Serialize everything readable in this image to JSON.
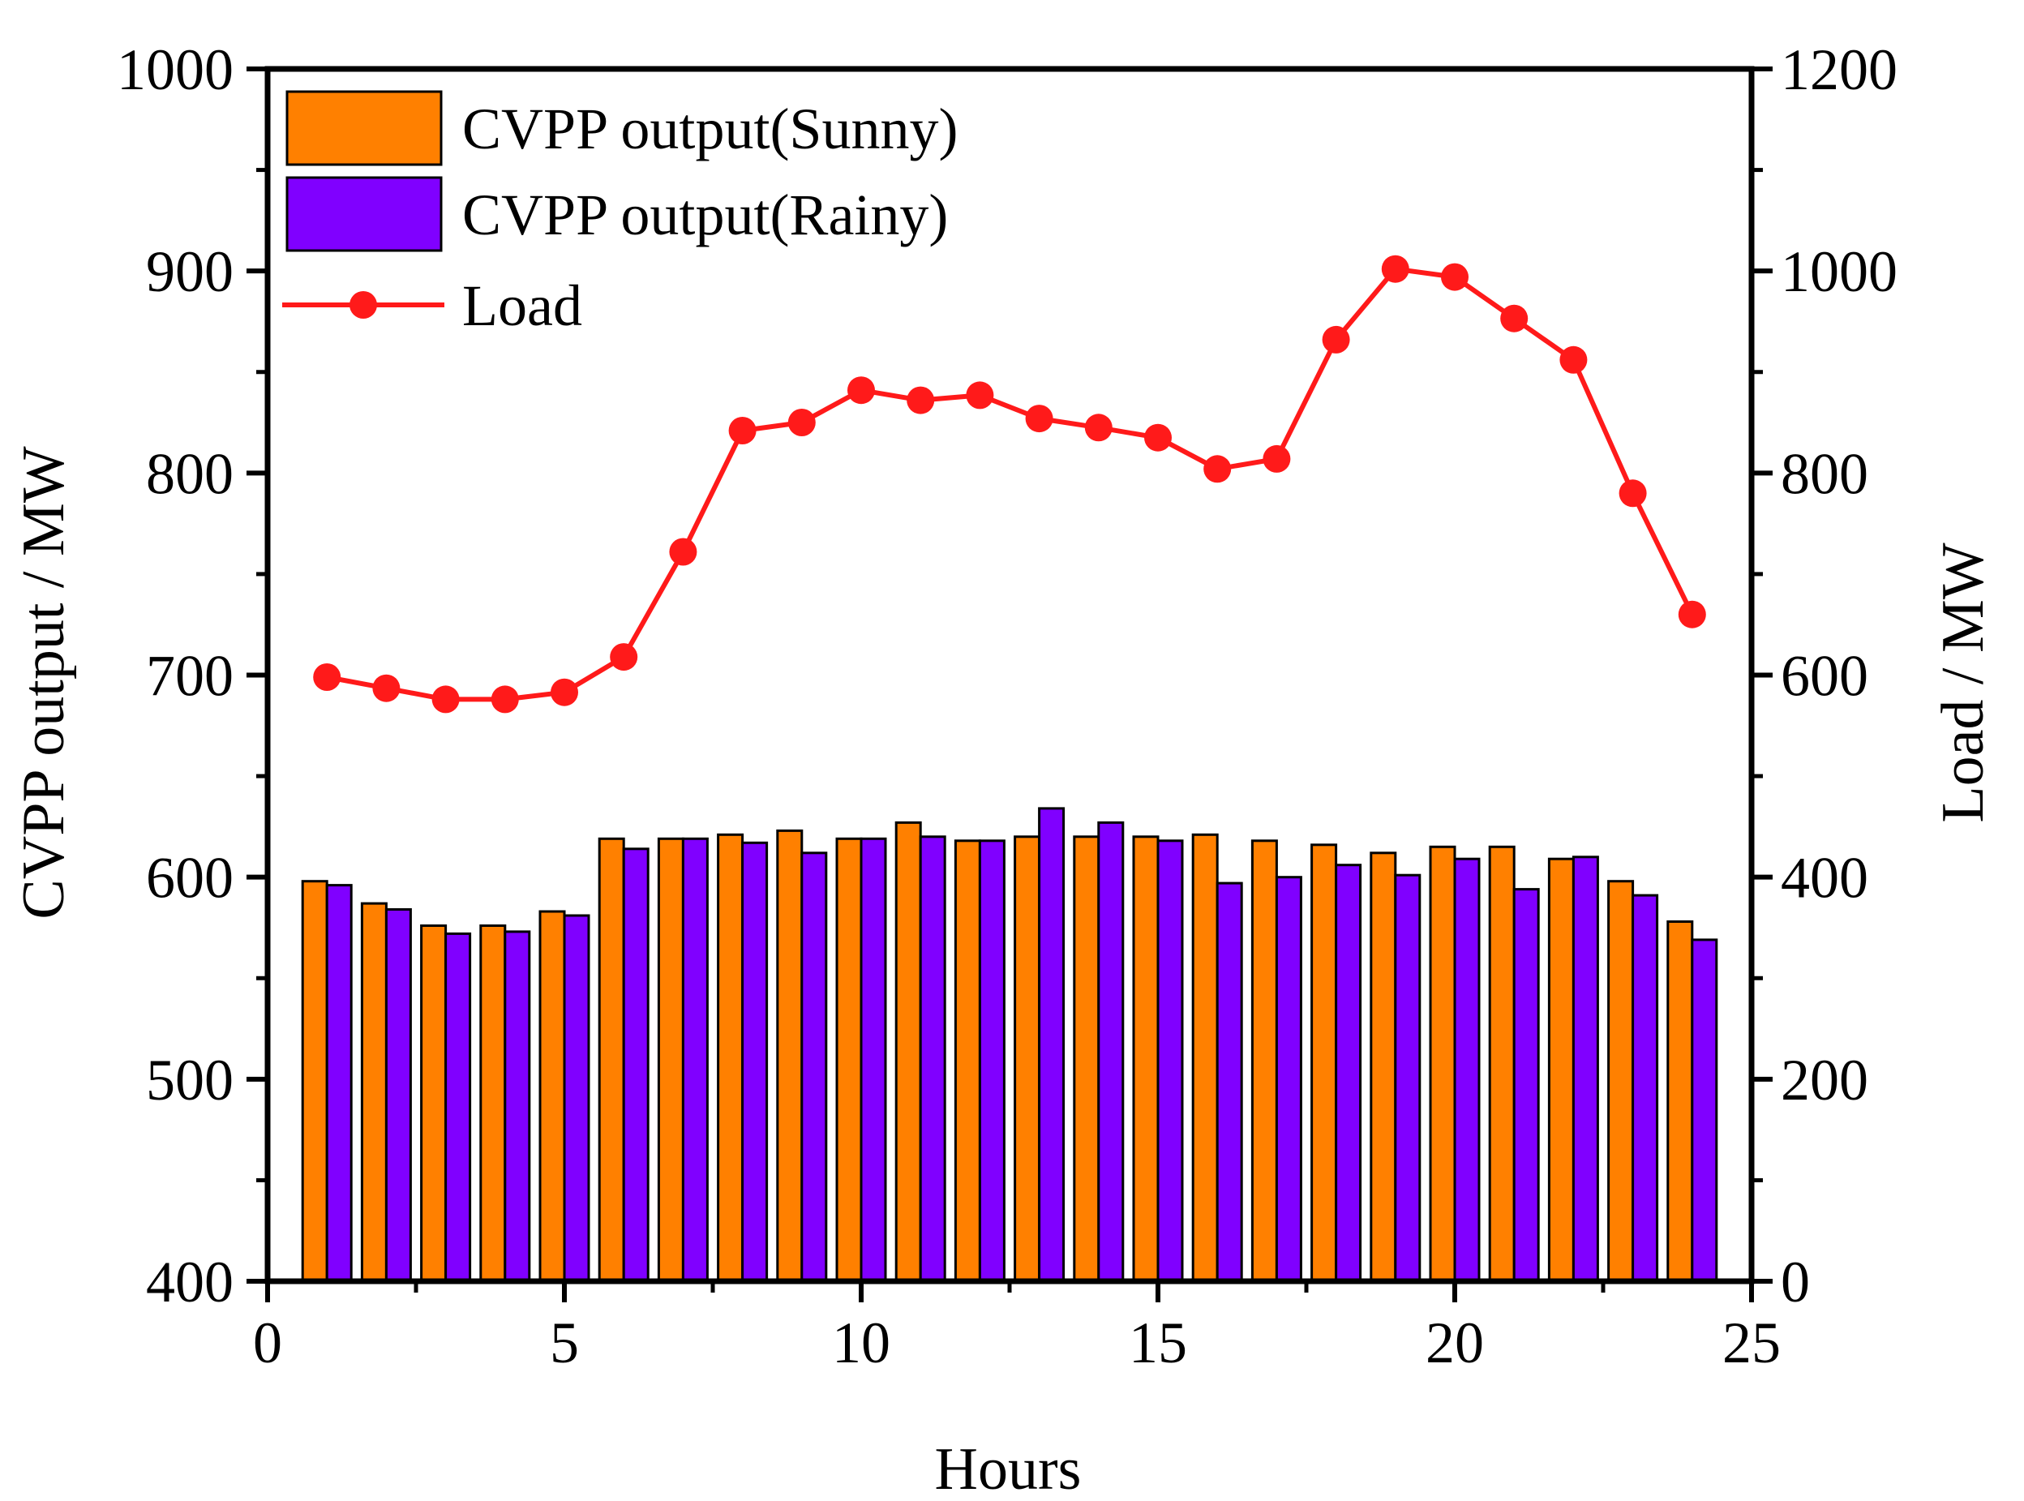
{
  "chart_data": {
    "type": "bar",
    "xlabel": "Hours",
    "ylabel_left": "CVPP output / MW",
    "ylabel_right": "Load / MW",
    "xlim": [
      0,
      25
    ],
    "ylim_left": [
      400,
      1000
    ],
    "ylim_right": [
      0,
      1200
    ],
    "x_ticks": [
      "0",
      "5",
      "10",
      "15",
      "20",
      "25"
    ],
    "y_left_ticks": [
      "400",
      "500",
      "600",
      "700",
      "800",
      "900",
      "1000"
    ],
    "y_right_ticks": [
      "0",
      "200",
      "400",
      "600",
      "800",
      "1000",
      "1200"
    ],
    "grid": false,
    "legend_position": "top-left",
    "x": [
      1,
      2,
      3,
      4,
      5,
      6,
      7,
      8,
      9,
      10,
      11,
      12,
      13,
      14,
      15,
      16,
      17,
      18,
      19,
      20,
      21,
      22,
      23,
      24
    ],
    "series": [
      {
        "name": "CVPP output(Sunny)",
        "type": "bar",
        "axis": "left",
        "color": "#ff8000",
        "values": [
          598,
          587,
          576,
          576,
          583,
          619,
          619,
          621,
          623,
          619,
          627,
          618,
          620,
          620,
          620,
          621,
          618,
          616,
          612,
          615,
          615,
          609,
          598,
          578
        ]
      },
      {
        "name": "CVPP output(Rainy)",
        "type": "bar",
        "axis": "left",
        "color": "#8000ff",
        "values": [
          596,
          584,
          572,
          573,
          581,
          614,
          619,
          617,
          612,
          619,
          620,
          618,
          634,
          627,
          618,
          597,
          600,
          606,
          601,
          609,
          594,
          610,
          591,
          569
        ]
      },
      {
        "name": "Load",
        "type": "line",
        "axis": "right",
        "color": "#ff1a1a",
        "values": [
          598,
          587,
          576,
          576,
          583,
          618,
          722,
          842,
          850,
          882,
          872,
          877,
          854,
          845,
          835,
          804,
          814,
          932,
          1002,
          994,
          953,
          912,
          780,
          660
        ]
      }
    ]
  }
}
